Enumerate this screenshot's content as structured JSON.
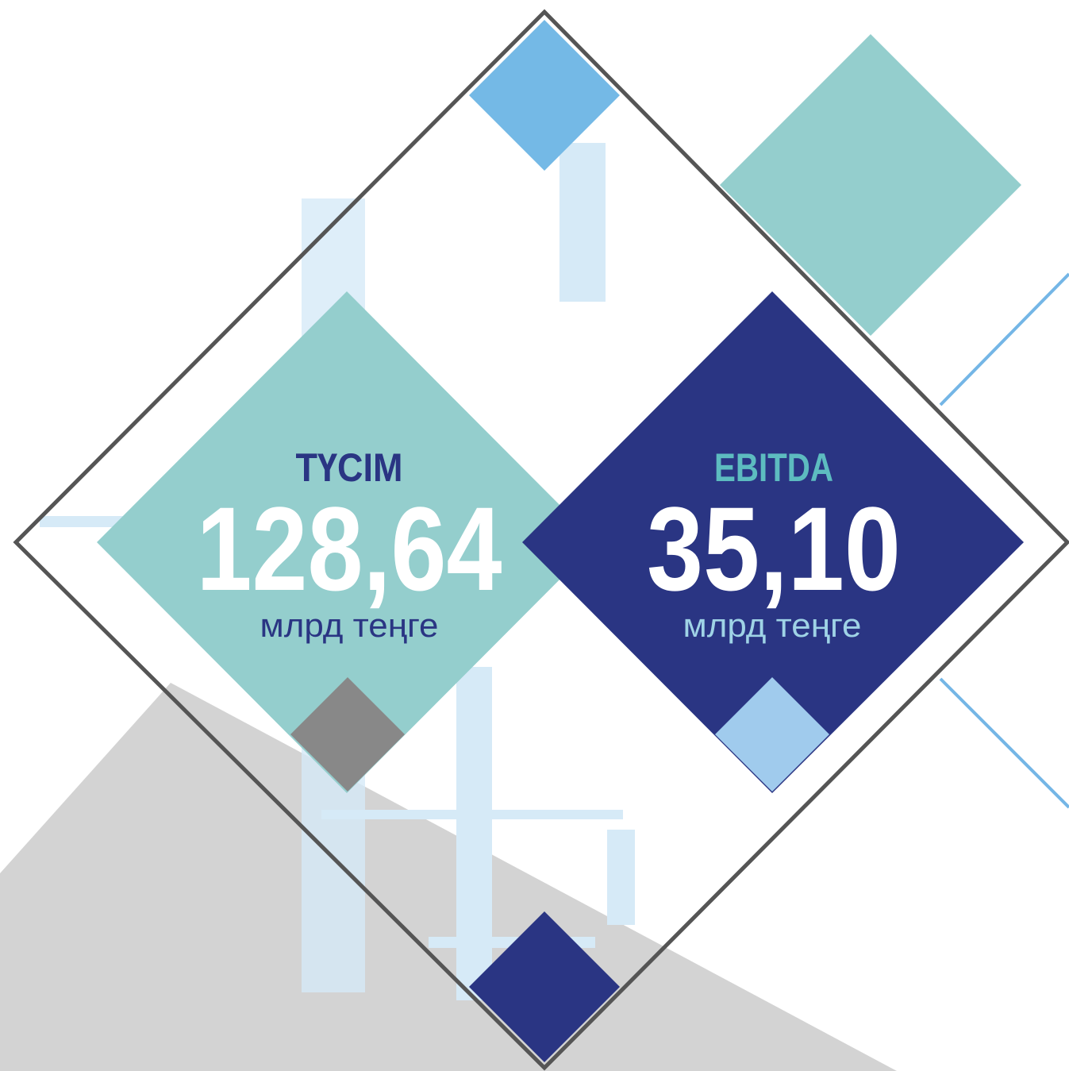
{
  "cards": [
    {
      "label": "ТҮСІМ",
      "value": "128,64",
      "unit": "млрд теңге"
    },
    {
      "label": "EBITDA",
      "value": "35,10",
      "unit": "млрд теңге"
    }
  ]
}
